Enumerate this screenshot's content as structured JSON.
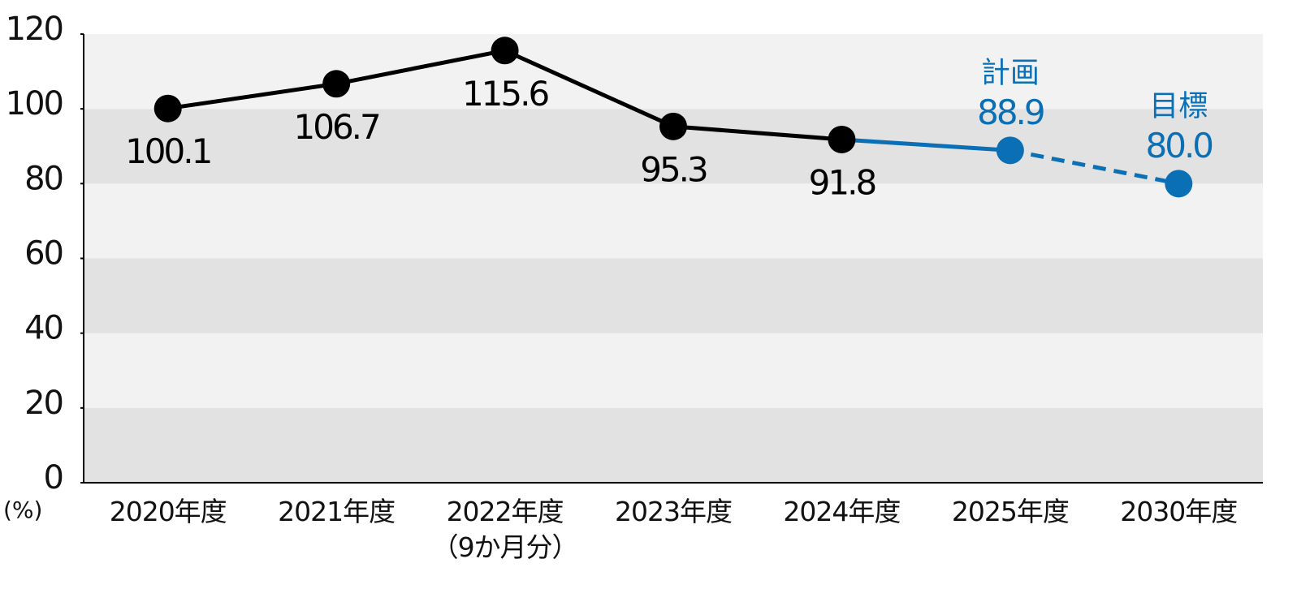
{
  "chart_data": {
    "type": "line",
    "y_label": "(%)",
    "categories": [
      "2020年度",
      "2021年度",
      "2022年度\n（9か月分）",
      "2023年度",
      "2024年度",
      "2025年度",
      "2030年度"
    ],
    "values": [
      100.1,
      106.7,
      115.6,
      95.3,
      91.8,
      88.9,
      80.0
    ],
    "value_labels": [
      "100.1",
      "106.7",
      "115.6",
      "95.3",
      "91.8",
      "88.9",
      "80.0"
    ],
    "annotations": [
      null,
      null,
      null,
      null,
      null,
      "計画",
      "目標"
    ],
    "colors": [
      "#000000",
      "#000000",
      "#000000",
      "#000000",
      "#000000",
      "#0a6fb5",
      "#0a6fb5"
    ],
    "segment_styles": [
      "solid",
      "solid",
      "solid",
      "solid",
      "solid",
      "dashed"
    ],
    "label_positions": [
      "below",
      "below",
      "below",
      "below",
      "below",
      "above",
      "above"
    ],
    "ylim": [
      0,
      120
    ],
    "yticks": [
      0,
      20,
      40,
      60,
      80,
      100,
      120
    ],
    "grid": "bands"
  }
}
